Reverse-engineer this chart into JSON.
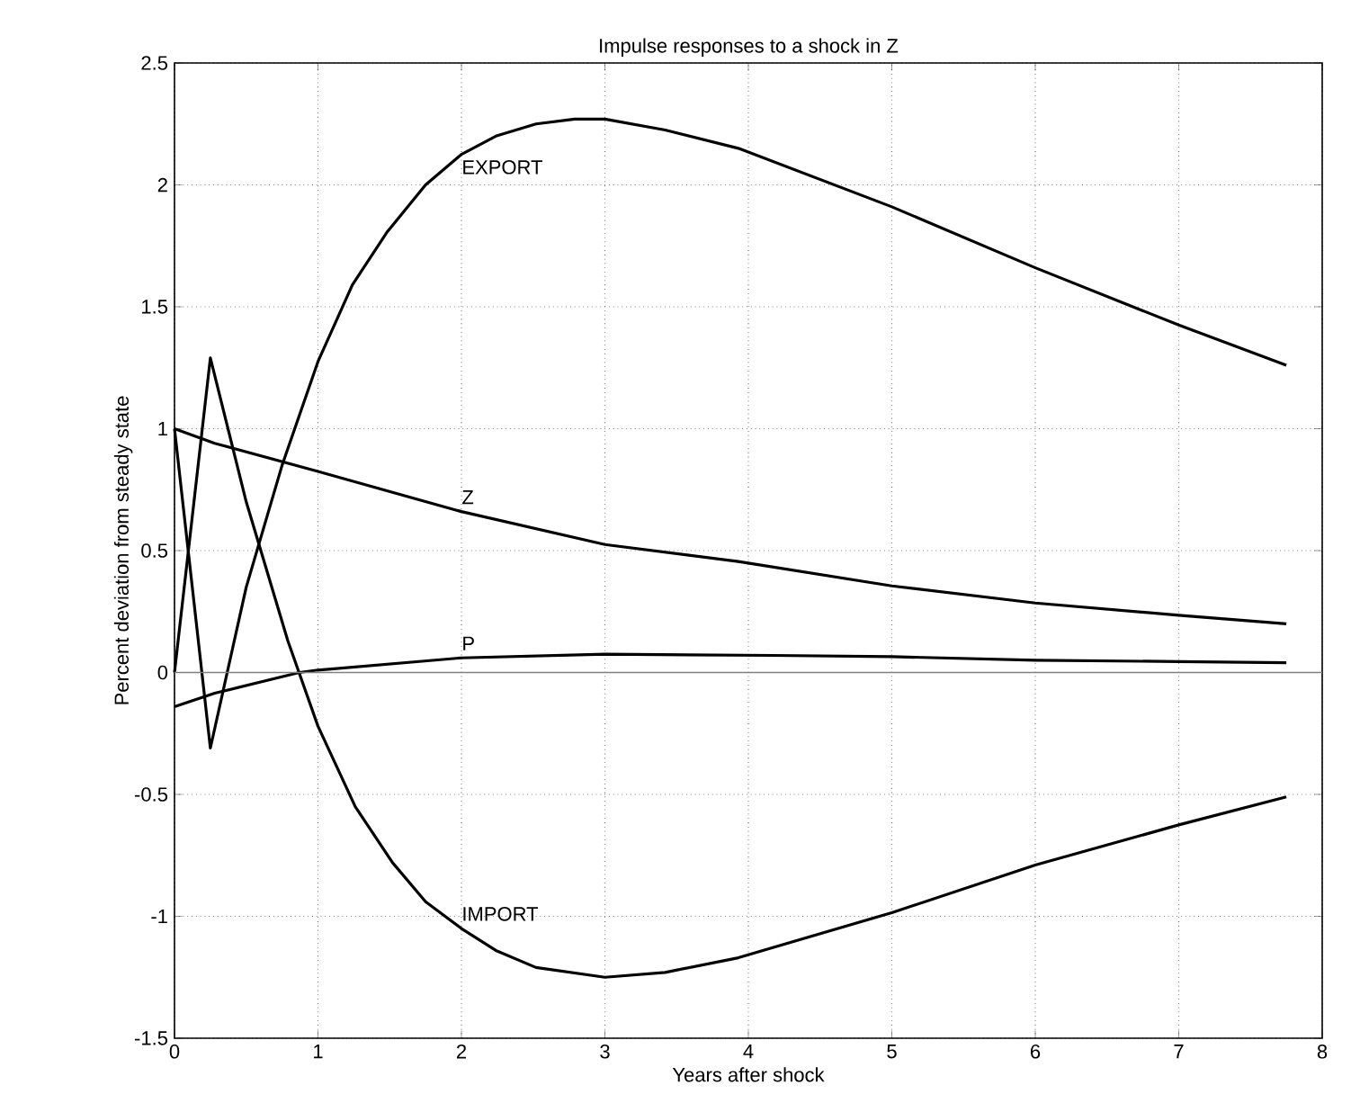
{
  "chart_data": {
    "type": "line",
    "title": "Impulse responses to a shock in Z",
    "xlabel": "Years after shock",
    "ylabel": "Percent deviation from steady state",
    "series": [
      {
        "color": "#000000",
        "x": [
          0,
          0.25,
          0.5,
          0.75,
          1.0,
          1.24,
          1.48,
          1.75,
          2.0,
          2.24,
          2.52,
          2.79,
          3.0,
          3.42,
          3.93,
          5.0,
          6.0,
          7.0,
          7.75
        ],
        "values": [
          1.0,
          -0.31,
          0.35,
          0.85,
          1.275,
          1.59,
          1.805,
          2.0,
          2.125,
          2.2,
          2.25,
          2.27,
          2.27,
          2.225,
          2.15,
          1.91,
          1.66,
          1.425,
          1.26
        ]
      },
      {
        "color": "#000000",
        "x": [
          0,
          0.25,
          0.5,
          0.79,
          1.0,
          1.26,
          1.52,
          1.75,
          2.0,
          2.24,
          2.52,
          3.0,
          3.42,
          3.93,
          5.0,
          6.0,
          7.0,
          7.75
        ],
        "values": [
          0.0,
          1.29,
          0.7,
          0.13,
          -0.22,
          -0.55,
          -0.78,
          -0.94,
          -1.05,
          -1.14,
          -1.21,
          -1.25,
          -1.23,
          -1.17,
          -0.985,
          -0.79,
          -0.625,
          -0.51
        ]
      },
      {
        "color": "#000000",
        "x": [
          0,
          0.28,
          1.0,
          2.0,
          3.0,
          3.93,
          5.0,
          6.0,
          7.0,
          7.75
        ],
        "values": [
          1.0,
          0.94,
          0.825,
          0.66,
          0.525,
          0.455,
          0.355,
          0.285,
          0.235,
          0.2
        ]
      },
      {
        "color": "#000000",
        "x": [
          0,
          0.28,
          0.87,
          1.0,
          2.0,
          3.0,
          4.17,
          5.0,
          6.0,
          7.0,
          7.75
        ],
        "values": [
          -0.14,
          -0.085,
          0.0,
          0.01,
          0.06,
          0.075,
          0.07,
          0.065,
          0.05,
          0.045,
          0.04
        ]
      }
    ],
    "annotations": [
      "EXPORT",
      "IMPORT",
      "Z",
      "P"
    ],
    "ref_lines": [
      {
        "axis": "y",
        "value": 0,
        "color": "#808080"
      }
    ],
    "xlim": [
      0,
      8
    ],
    "ylim": [
      -1.5,
      2.5
    ],
    "xticks": [
      0,
      1,
      2,
      3,
      4,
      5,
      6,
      7,
      8
    ],
    "yticks": [
      -1.5,
      -1,
      -0.5,
      0,
      0.5,
      1,
      1.5,
      2,
      2.5
    ],
    "grid": true,
    "marker": "none",
    "line_style": "solid"
  }
}
